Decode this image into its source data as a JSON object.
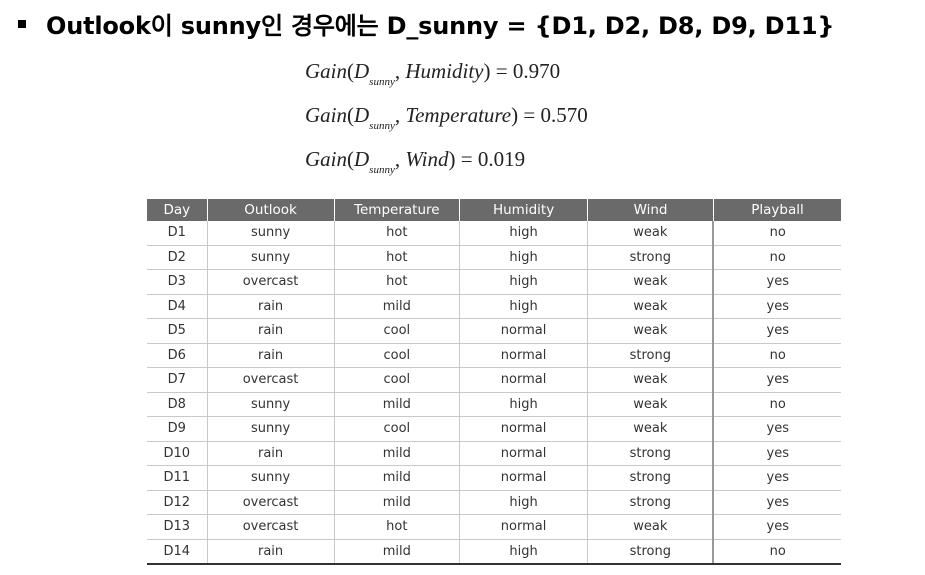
{
  "heading": "Outlook이 sunny인 경우에는 D_sunny = {D1, D2, D8, D9, D11}",
  "formulas": [
    {
      "fn": "Gain",
      "base": "D",
      "sub": "sunny",
      "attr": "Humidity",
      "value": "0.970"
    },
    {
      "fn": "Gain",
      "base": "D",
      "sub": "sunny",
      "attr": "Temperature",
      "value": "0.570"
    },
    {
      "fn": "Gain",
      "base": "D",
      "sub": "sunny",
      "attr": "Wind",
      "value": "0.019"
    }
  ],
  "table": {
    "headers": [
      "Day",
      "Outlook",
      "Temperature",
      "Humidity",
      "Wind",
      "Playball"
    ],
    "rows": [
      [
        "D1",
        "sunny",
        "hot",
        "high",
        "weak",
        "no"
      ],
      [
        "D2",
        "sunny",
        "hot",
        "high",
        "strong",
        "no"
      ],
      [
        "D3",
        "overcast",
        "hot",
        "high",
        "weak",
        "yes"
      ],
      [
        "D4",
        "rain",
        "mild",
        "high",
        "weak",
        "yes"
      ],
      [
        "D5",
        "rain",
        "cool",
        "normal",
        "weak",
        "yes"
      ],
      [
        "D6",
        "rain",
        "cool",
        "normal",
        "strong",
        "no"
      ],
      [
        "D7",
        "overcast",
        "cool",
        "normal",
        "weak",
        "yes"
      ],
      [
        "D8",
        "sunny",
        "mild",
        "high",
        "weak",
        "no"
      ],
      [
        "D9",
        "sunny",
        "cool",
        "normal",
        "weak",
        "yes"
      ],
      [
        "D10",
        "rain",
        "mild",
        "normal",
        "strong",
        "yes"
      ],
      [
        "D11",
        "sunny",
        "mild",
        "normal",
        "strong",
        "yes"
      ],
      [
        "D12",
        "overcast",
        "mild",
        "high",
        "strong",
        "yes"
      ],
      [
        "D13",
        "overcast",
        "hot",
        "normal",
        "weak",
        "yes"
      ],
      [
        "D14",
        "rain",
        "mild",
        "high",
        "strong",
        "no"
      ]
    ]
  }
}
